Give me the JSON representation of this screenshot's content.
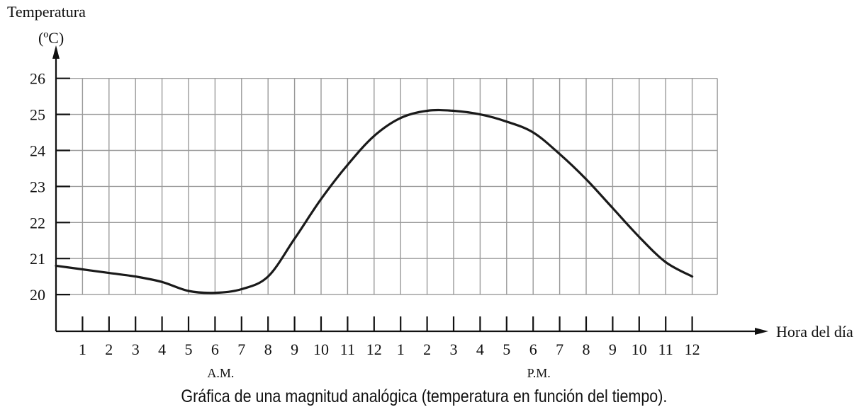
{
  "chart_data": {
    "type": "line",
    "ylabel_line1": "Temperatura",
    "ylabel_line2": "(ºC)",
    "xlabel": "Hora del día",
    "ylim": [
      19,
      26
    ],
    "yticks": [
      20,
      21,
      22,
      23,
      24,
      25,
      26
    ],
    "xlim": [
      0,
      24
    ],
    "xtick_labels": [
      "1",
      "2",
      "3",
      "4",
      "5",
      "6",
      "7",
      "8",
      "9",
      "10",
      "11",
      "12",
      "1",
      "2",
      "3",
      "4",
      "5",
      "6",
      "7",
      "8",
      "9",
      "10",
      "11",
      "12"
    ],
    "period_labels": [
      {
        "text": "A.M.",
        "x": 6
      },
      {
        "text": "P.M.",
        "x": 18
      }
    ],
    "grid": true,
    "series": [
      {
        "x": [
          0,
          1,
          2,
          3,
          4,
          5,
          6,
          7,
          8,
          9,
          10,
          11,
          12,
          13,
          14,
          15,
          16,
          17,
          18,
          19,
          20,
          21,
          22,
          23,
          24
        ],
        "values": [
          20.8,
          20.7,
          20.6,
          20.5,
          20.35,
          20.1,
          20.05,
          20.15,
          20.5,
          21.55,
          22.65,
          23.6,
          24.4,
          24.9,
          25.1,
          25.1,
          25.0,
          24.8,
          24.5,
          23.9,
          23.2,
          22.4,
          21.6,
          20.9,
          20.5
        ]
      }
    ]
  },
  "caption": "Gráfica de una magnitud analógica (temperatura en función del tiempo)."
}
